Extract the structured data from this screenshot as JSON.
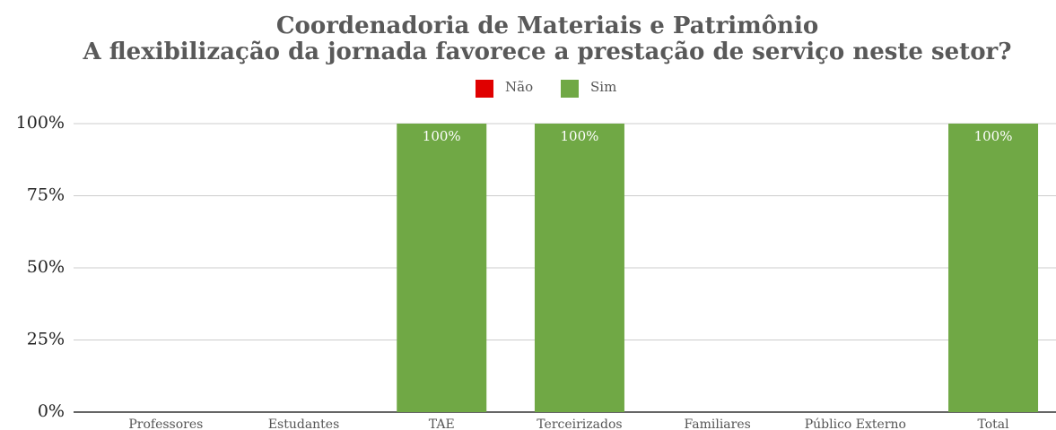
{
  "chart_data": {
    "type": "stacked_bar",
    "title": "Coordenadoria de Materiais e Patrimônio",
    "subtitle": "A flexibilização da jornada favorece a prestação de serviço neste setor?",
    "categories": [
      "Professores",
      "Estudantes",
      "TAE",
      "Terceirizados",
      "Familiares",
      "Público Externo",
      "Total"
    ],
    "series": [
      {
        "name": "Não",
        "color": "#e00000",
        "values": [
          0,
          0,
          0,
          0,
          0,
          0,
          0
        ]
      },
      {
        "name": "Sim",
        "color": "#70a845",
        "values": [
          0,
          0,
          100,
          100,
          0,
          0,
          100
        ],
        "value_labels": [
          null,
          null,
          "100%",
          "100%",
          null,
          null,
          "100%"
        ]
      }
    ],
    "ylim": [
      0,
      100
    ],
    "yticks": [
      {
        "value": 0,
        "label": "0%"
      },
      {
        "value": 25,
        "label": "25%"
      },
      {
        "value": 50,
        "label": "50%"
      },
      {
        "value": 75,
        "label": "75%"
      },
      {
        "value": 100,
        "label": "100%"
      }
    ],
    "grid": true,
    "legend": "top"
  }
}
